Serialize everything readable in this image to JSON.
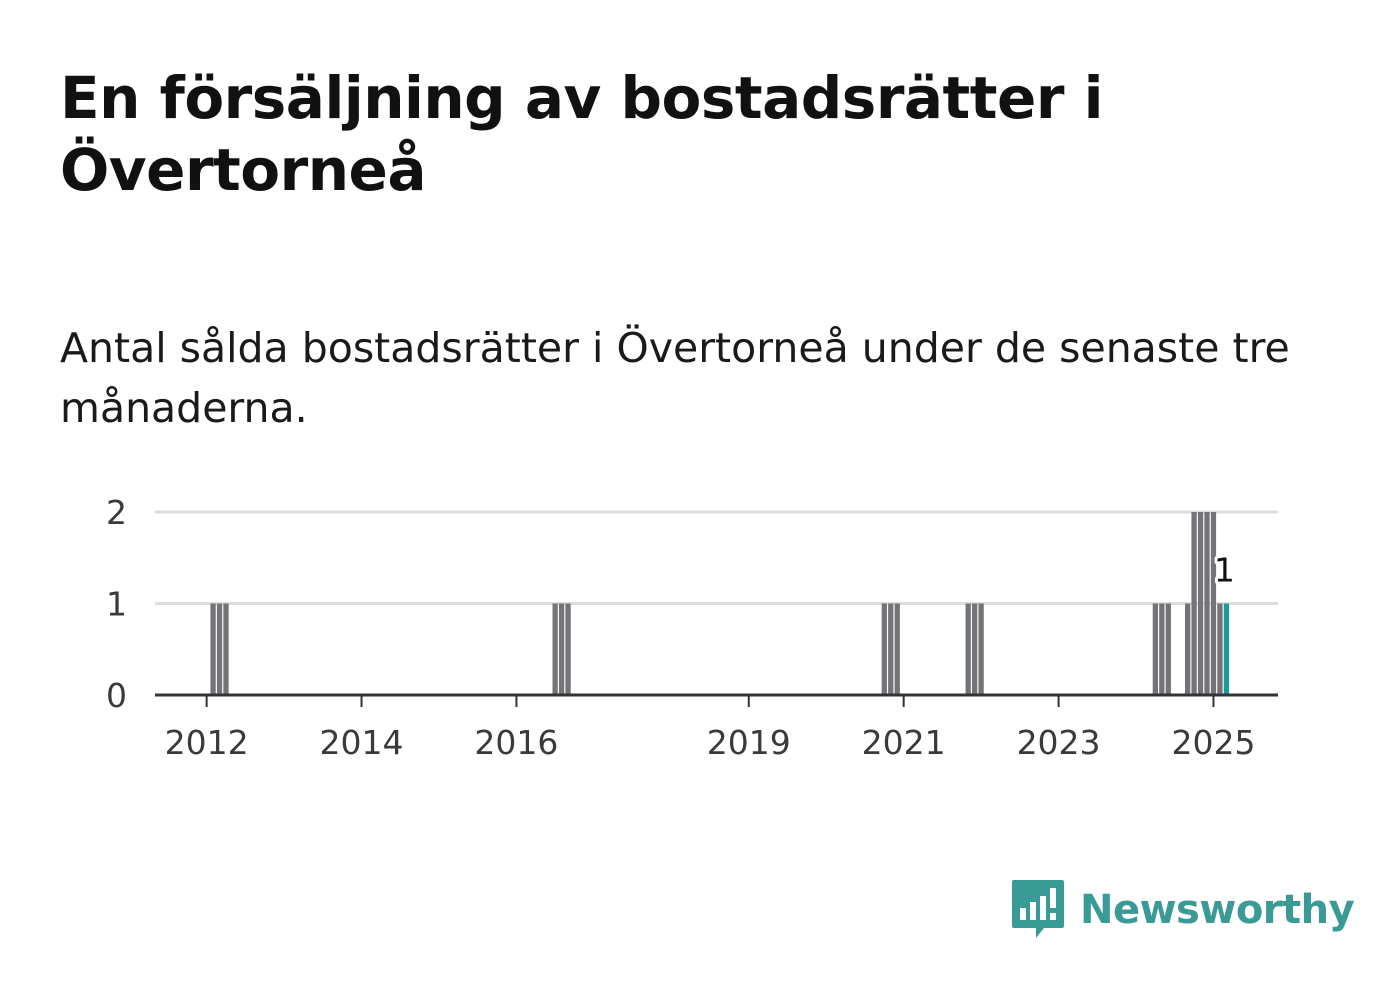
{
  "title": "En försäljning av bostadsrätter i Övertorneå",
  "subtitle": "Antal sålda bostadsrätter i Övertorneå under de senaste tre månaderna.",
  "brand": "Newsworthy",
  "colors": {
    "bar": "#737378",
    "highlight": "#1a9b9b",
    "grid": "#dddddd",
    "axis": "#333333",
    "brand": "#3a9a96"
  },
  "chart_data": {
    "type": "bar",
    "title": "En försäljning av bostadsrätter i Övertorneå",
    "subtitle": "Antal sålda bostadsrätter i Övertorneå under de senaste tre månaderna.",
    "xlabel": "",
    "ylabel": "",
    "ylim": [
      0,
      2
    ],
    "yticks": [
      0,
      1,
      2
    ],
    "xlim": [
      "2011-05",
      "2025-11"
    ],
    "xticks": [
      "2012",
      "2014",
      "2016",
      "2019",
      "2021",
      "2023",
      "2025"
    ],
    "grid": true,
    "x": [
      "2012-02",
      "2012-03",
      "2012-04",
      "2016-07",
      "2016-08",
      "2016-09",
      "2020-10",
      "2020-11",
      "2020-12",
      "2021-11",
      "2021-12",
      "2022-01",
      "2024-04",
      "2024-05",
      "2024-06",
      "2024-09",
      "2024-10",
      "2024-11",
      "2024-12",
      "2025-01",
      "2025-02",
      "2025-03"
    ],
    "values": [
      1,
      1,
      1,
      1,
      1,
      1,
      1,
      1,
      1,
      1,
      1,
      1,
      1,
      1,
      1,
      1,
      2,
      2,
      2,
      2,
      1,
      1
    ],
    "highlight": {
      "x": "2025-03",
      "value": 1,
      "label": "1"
    }
  }
}
